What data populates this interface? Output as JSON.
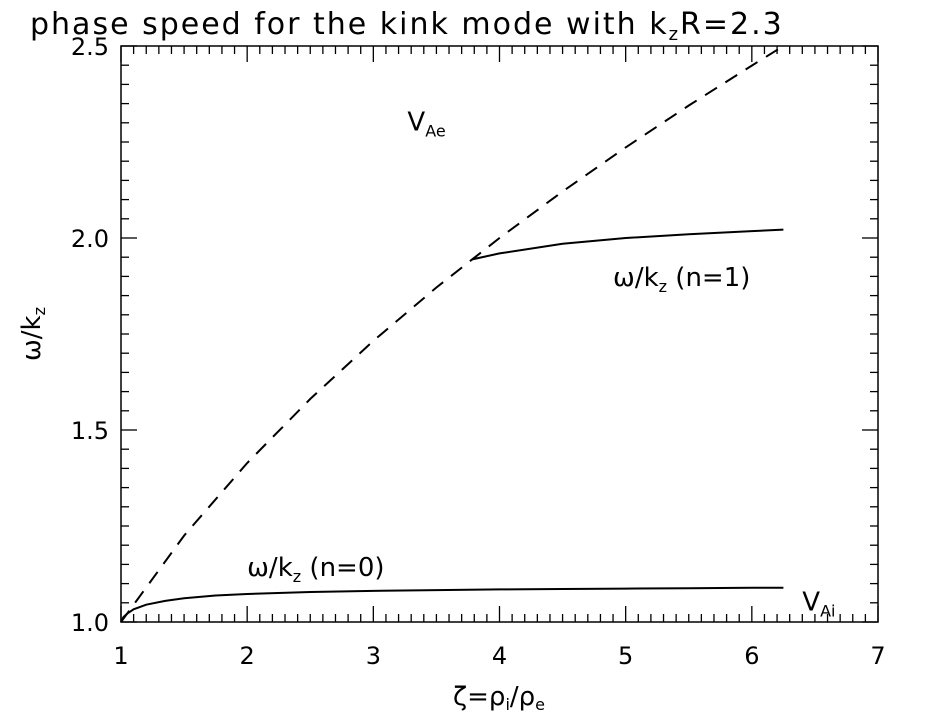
{
  "chart_data": {
    "type": "line",
    "title": "phase speed for the kink mode with k",
    "title_sub": "z",
    "title_tail": "R=2.3",
    "xlabel": "ζ=ρ",
    "xlabel_sub1": "i",
    "xlabel_mid": "/ρ",
    "xlabel_sub2": "e",
    "ylabel": "ω/k",
    "ylabel_sub": "z",
    "xlim": [
      1,
      7
    ],
    "ylim": [
      1.0,
      2.5
    ],
    "xticks": [
      1,
      2,
      3,
      4,
      5,
      6,
      7
    ],
    "xtick_labels": [
      "1",
      "2",
      "3",
      "4",
      "5",
      "6",
      "7"
    ],
    "yticks": [
      1.0,
      1.5,
      2.0,
      2.5
    ],
    "ytick_labels": [
      "1.0",
      "1.5",
      "2.0",
      "2.5"
    ],
    "grid": false,
    "series": [
      {
        "id": "vae",
        "style": "dashed",
        "x": [
          1.0,
          1.5,
          2.0,
          2.5,
          3.0,
          3.5,
          4.0,
          4.5,
          5.0,
          5.5,
          6.0,
          6.25
        ],
        "y": [
          1.0,
          1.225,
          1.414,
          1.581,
          1.732,
          1.871,
          2.0,
          2.121,
          2.236,
          2.345,
          2.449,
          2.5
        ]
      },
      {
        "id": "n1",
        "style": "solid",
        "x": [
          3.78,
          4.0,
          4.5,
          5.0,
          5.5,
          6.0,
          6.25
        ],
        "y": [
          1.944,
          1.96,
          1.985,
          2.0,
          2.01,
          2.018,
          2.022
        ]
      },
      {
        "id": "n0",
        "style": "solid",
        "x": [
          1.0,
          1.02,
          1.05,
          1.1,
          1.2,
          1.35,
          1.5,
          1.75,
          2.0,
          2.5,
          3.0,
          3.5,
          4.0,
          4.5,
          5.0,
          5.5,
          6.0,
          6.25
        ],
        "y": [
          1.0,
          1.013,
          1.022,
          1.033,
          1.045,
          1.055,
          1.062,
          1.069,
          1.073,
          1.078,
          1.081,
          1.083,
          1.085,
          1.086,
          1.087,
          1.088,
          1.089,
          1.089
        ]
      }
    ],
    "annotations": [
      {
        "id": "vae",
        "text": "V",
        "sub": "Ae",
        "x": 3.27,
        "y": 2.28
      },
      {
        "id": "n1",
        "text": "ω/k",
        "sub": "z",
        "tail": " (n=1)",
        "x": 4.9,
        "y": 1.875
      },
      {
        "id": "n0",
        "text": "ω/k",
        "sub": "z",
        "tail": " (n=0)",
        "x": 2.0,
        "y": 1.12
      },
      {
        "id": "vai",
        "text": "V",
        "sub": "Ai",
        "x": 6.4,
        "y": 1.03
      }
    ]
  }
}
